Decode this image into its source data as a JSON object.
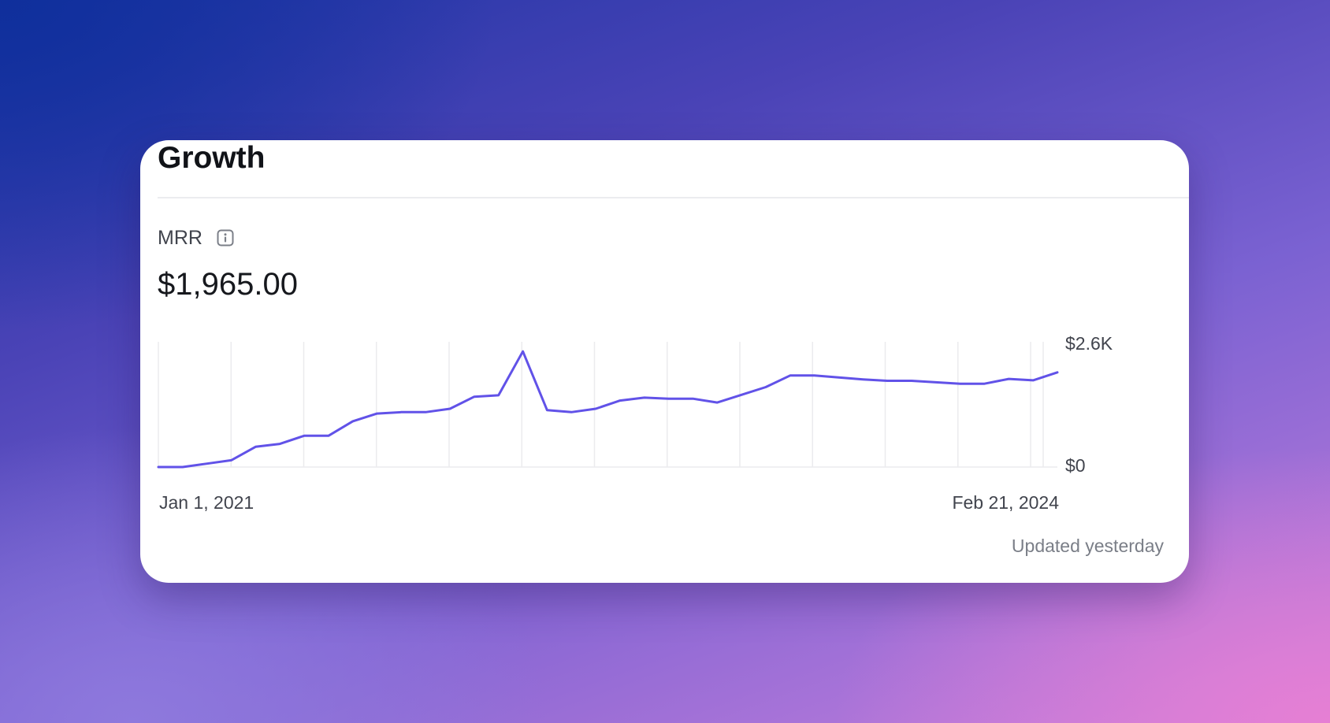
{
  "card": {
    "title": "Growth",
    "metric_label": "MRR",
    "metric_value": "$1,965.00",
    "updated_text": "Updated yesterday",
    "info_icon": "info-icon"
  },
  "colors": {
    "line": "#6152e8",
    "grid": "#ebebee",
    "card": "#ffffff"
  },
  "chart_data": {
    "type": "line",
    "title": "",
    "xlabel": "",
    "ylabel": "",
    "x_start_label": "Jan 1, 2021",
    "x_end_label": "Feb 21, 2024",
    "y_tick_labels": [
      "$0",
      "$2.6K"
    ],
    "ylim": [
      0,
      2600
    ],
    "grid": true,
    "series": [
      {
        "values": [
          0,
          0,
          70,
          140,
          420,
          480,
          650,
          650,
          950,
          1110,
          1140,
          1140,
          1210,
          1460,
          1490,
          2400,
          1180,
          1140,
          1210,
          1380,
          1440,
          1420,
          1420,
          1340,
          1500,
          1660,
          1900,
          1900,
          1860,
          1820,
          1790,
          1790,
          1760,
          1730,
          1730,
          1830,
          1800,
          1965
        ]
      }
    ]
  }
}
